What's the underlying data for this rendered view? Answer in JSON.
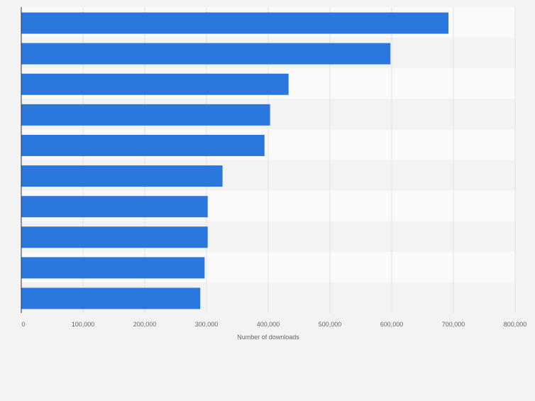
{
  "chart_data": {
    "type": "bar",
    "orientation": "horizontal",
    "categories": [
      "",
      "",
      "",
      "",
      "",
      "",
      "",
      "",
      "",
      ""
    ],
    "values": [
      692000,
      598000,
      433000,
      403000,
      394000,
      326000,
      302000,
      302000,
      297000,
      290000
    ],
    "xlabel": "Number of downloads",
    "ylabel": "",
    "xlim": [
      0,
      800000
    ],
    "x_ticks": [
      0,
      100000,
      200000,
      300000,
      400000,
      500000,
      600000,
      700000,
      800000
    ],
    "x_tick_labels": [
      "0",
      "100,000",
      "200,000",
      "300,000",
      "400,000",
      "500,000",
      "600,000",
      "700,000",
      "800,000"
    ],
    "grid": true,
    "legend": "none",
    "colors": {
      "bar": "#2a78dd",
      "band_light": "#fafafa",
      "band_dark": "#f3f3f3",
      "grid": "#e2e2e2",
      "axis": "#333333",
      "tick_text": "#666666",
      "background": "#f3f3f3"
    }
  }
}
